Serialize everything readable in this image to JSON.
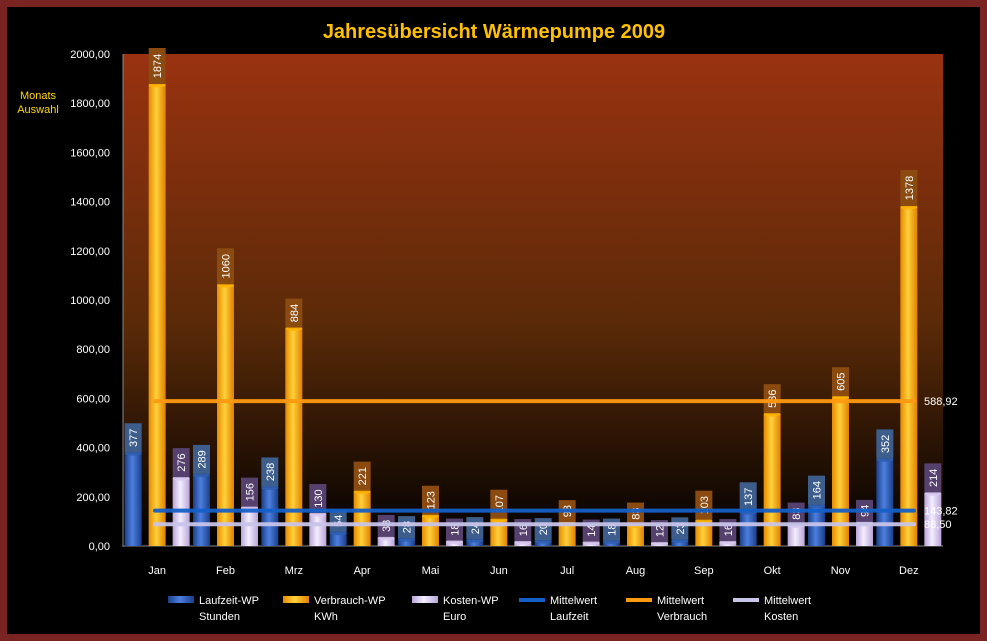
{
  "side_label": {
    "line1": "Monats",
    "line2": "Auswahl"
  },
  "chart_data": {
    "type": "bar",
    "title": "Jahresübersicht Wärmepumpe  2009",
    "categories": [
      "Jan",
      "Feb",
      "Mrz",
      "Apr",
      "Mai",
      "Jun",
      "Jul",
      "Aug",
      "Sep",
      "Okt",
      "Nov",
      "Dez"
    ],
    "ylim": [
      0,
      2000
    ],
    "yticks": [
      "0,00",
      "200,00",
      "400,00",
      "600,00",
      "800,00",
      "1000,00",
      "1200,00",
      "1400,00",
      "1600,00",
      "1800,00",
      "2000,00"
    ],
    "series": [
      {
        "name": "Laufzeit-WP",
        "unit": "Stunden",
        "values": [
          377,
          289,
          238,
          54,
          28,
          24,
          20,
          18,
          23,
          137,
          164,
          352
        ],
        "color": "#2f5fb3",
        "label_color": "#3d5e8c"
      },
      {
        "name": "Verbrauch-WP",
        "unit": "KWh",
        "values": [
          1874,
          1060,
          884,
          221,
          123,
          107,
          93,
          83,
          103,
          536,
          605,
          1378
        ],
        "color": "#ffb300",
        "label_color": "#8a4a10"
      },
      {
        "name": "Kosten-WP",
        "unit": "Euro",
        "values": [
          276,
          156,
          130,
          33,
          18,
          16,
          14,
          12,
          16,
          83,
          94,
          214
        ],
        "color": "#d8c8f0",
        "label_color": "#55406e"
      }
    ],
    "averages": [
      {
        "name": "Mittelwert",
        "sub": "Laufzeit",
        "value": 143.82,
        "label": "143,82",
        "color": "#1560c8"
      },
      {
        "name": "Mittelwert",
        "sub": "Verbrauch",
        "value": 588.92,
        "label": "588,92",
        "color": "#ff9a10"
      },
      {
        "name": "Mittelwert",
        "sub": "Kosten",
        "value": 88.5,
        "label": "88,50",
        "color": "#c8c4ea"
      }
    ],
    "grid": false,
    "legend_position": "bottom"
  }
}
